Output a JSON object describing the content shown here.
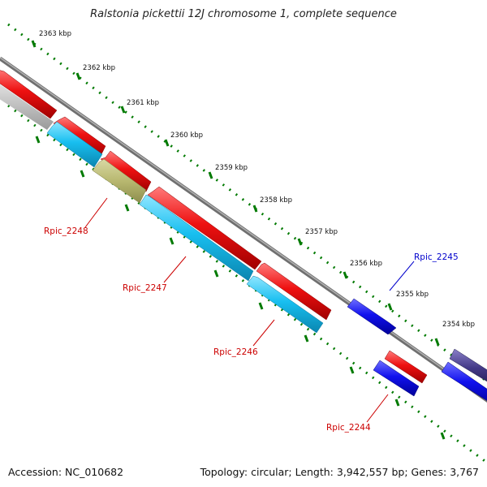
{
  "title": "Ralstonia pickettii 12J chromosome 1, complete sequence",
  "footer": {
    "accession": "Accession: NC_010682",
    "summary": "Topology: circular; Length: 3,942,557 bp; Genes: 3,767"
  },
  "ticks": [
    "2363 kbp",
    "2362 kbp",
    "2361 kbp",
    "2360 kbp",
    "2359 kbp",
    "2358 kbp",
    "2357 kbp",
    "2356 kbp",
    "2355 kbp",
    "2354 kbp"
  ],
  "gene_labels": [
    {
      "text": "Rpic_2248",
      "color": "#cc0000"
    },
    {
      "text": "Rpic_2247",
      "color": "#cc0000"
    },
    {
      "text": "Rpic_2246",
      "color": "#cc0000"
    },
    {
      "text": "Rpic_2244",
      "color": "#cc0000"
    },
    {
      "text": "Rpic_2245",
      "color": "#0000cc"
    }
  ],
  "colors": {
    "forward_cds": "#ee1111",
    "reverse_cds": "#1111ee",
    "forward_feature": "#18bff0",
    "other_feature": "#b8b870",
    "dark_feature": "#443a88",
    "backbone": "#7f7f7f",
    "tick": "#007a00"
  }
}
